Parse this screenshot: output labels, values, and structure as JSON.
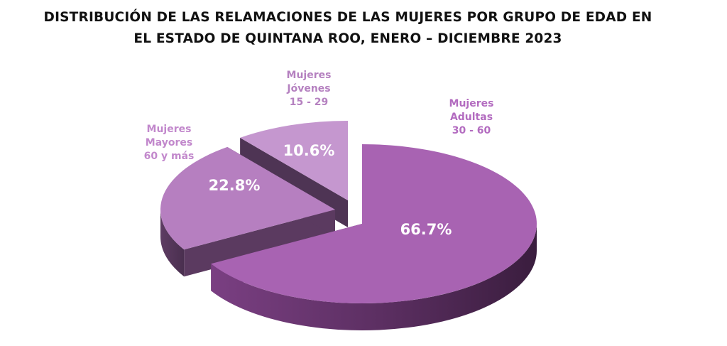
{
  "title_lines": [
    "DISTRIBUCIÓN DE LAS RELAMACIONES DE LAS MUJERES POR GRUPO DE EDAD EN",
    "EL ESTADO DE QUINTANA ROO, ENERO – DICIEMBRE 2023"
  ],
  "chart_data": {
    "type": "pie",
    "style": "3d-exploded",
    "title": "DISTRIBUCIÓN DE LAS RELAMACIONES DE LAS MUJERES POR GRUPO DE EDAD EN EL ESTADO DE QUINTANA ROO, ENERO – DICIEMBRE 2023",
    "unit": "%",
    "legend": "none",
    "slices": [
      {
        "label_lines": [
          "Mujeres",
          "Adultas",
          "30 - 60"
        ],
        "value": 66.7,
        "display": "66.7%",
        "color": "#a863b2",
        "side_color": "#5a2e60",
        "label_color": "#b36cc0"
      },
      {
        "label_lines": [
          "Mujeres",
          "Mayores",
          "60 y más"
        ],
        "value": 22.8,
        "display": "22.8%",
        "color": "#b67fc0",
        "side_color": "#5b3a60",
        "label_color": "#c288cc"
      },
      {
        "label_lines": [
          "Mujeres",
          "Jóvenes",
          "15 - 29"
        ],
        "value": 10.6,
        "display": "10.6%",
        "color": "#c597cf",
        "side_color": "#4e3454",
        "label_color": "#b581c0"
      }
    ]
  }
}
